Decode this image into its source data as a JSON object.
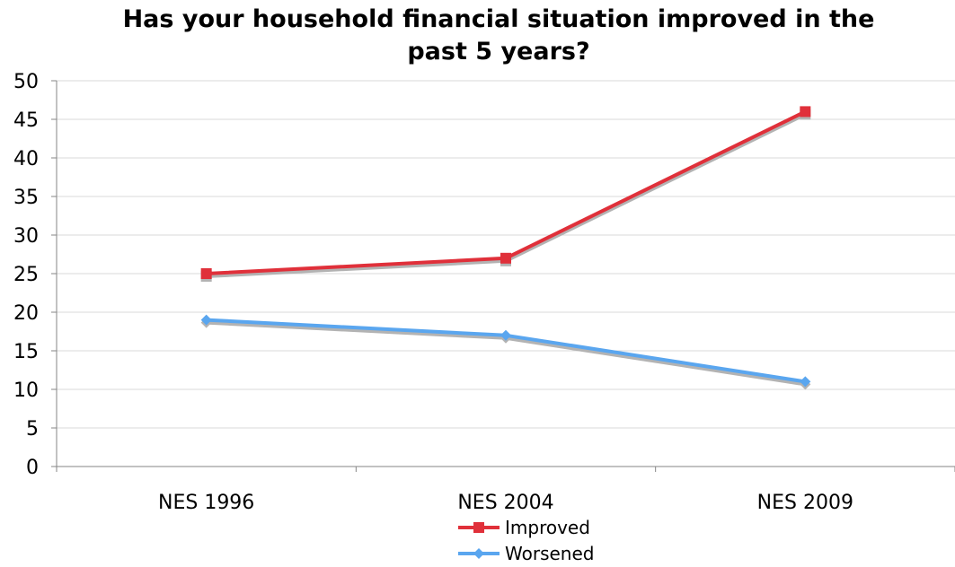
{
  "chart_data": {
    "type": "line",
    "title_lines": [
      "Has your household financial situation improved in the",
      "past 5 years?"
    ],
    "categories": [
      "NES 1996",
      "NES 2004",
      "NES 2009"
    ],
    "series": [
      {
        "name": "Improved",
        "values": [
          25,
          27,
          46
        ],
        "color": "#e0303a",
        "marker": "square"
      },
      {
        "name": "Worsened",
        "values": [
          19,
          17,
          11
        ],
        "color": "#5aa6ef",
        "marker": "diamond"
      }
    ],
    "ylim": [
      0,
      50
    ],
    "yticks": [
      0,
      5,
      10,
      15,
      20,
      25,
      30,
      35,
      40,
      45,
      50
    ],
    "grid": true,
    "legend_position": "bottom"
  }
}
